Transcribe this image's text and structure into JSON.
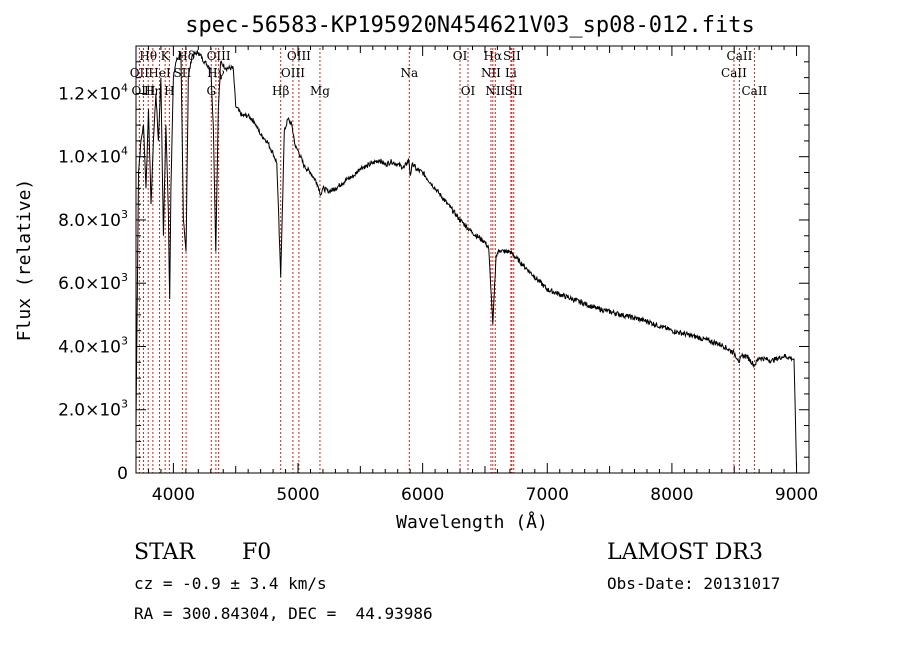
{
  "chart_data": {
    "type": "line",
    "title": "spec-56583-KP195920N454621V03_sp08-012.fits",
    "xlabel": "Wavelength (Å)",
    "ylabel": "Flux (relative)",
    "xlim": [
      3700,
      9100
    ],
    "ylim": [
      0,
      13500
    ],
    "x_ticks": [
      {
        "value": 4000,
        "label": "4000"
      },
      {
        "value": 5000,
        "label": "5000"
      },
      {
        "value": 6000,
        "label": "6000"
      },
      {
        "value": 7000,
        "label": "7000"
      },
      {
        "value": 8000,
        "label": "8000"
      },
      {
        "value": 9000,
        "label": "9000"
      }
    ],
    "y_ticks": [
      {
        "value": 0,
        "mant": "0",
        "exp": ""
      },
      {
        "value": 2000,
        "mant": "2.0×10",
        "exp": "3"
      },
      {
        "value": 4000,
        "mant": "4.0×10",
        "exp": "3"
      },
      {
        "value": 6000,
        "mant": "6.0×10",
        "exp": "3"
      },
      {
        "value": 8000,
        "mant": "8.0×10",
        "exp": "3"
      },
      {
        "value": 10000,
        "mant": "1.0×10",
        "exp": "4"
      },
      {
        "value": 12000,
        "mant": "1.2×10",
        "exp": "4"
      }
    ],
    "spectrum": {
      "x": [
        3700,
        3720,
        3740,
        3760,
        3780,
        3800,
        3820,
        3840,
        3860,
        3880,
        3900,
        3920,
        3940,
        3960,
        3970,
        3980,
        4000,
        4020,
        4060,
        4080,
        4101,
        4120,
        4150,
        4200,
        4250,
        4300,
        4320,
        4340,
        4360,
        4380,
        4420,
        4480,
        4500,
        4550,
        4600,
        4650,
        4700,
        4750,
        4800,
        4830,
        4861,
        4890,
        4920,
        4950,
        4980,
        5000,
        5050,
        5100,
        5150,
        5183,
        5200,
        5250,
        5300,
        5350,
        5400,
        5450,
        5500,
        5550,
        5600,
        5650,
        5700,
        5750,
        5800,
        5850,
        5890,
        5900,
        5920,
        5950,
        6000,
        6100,
        6200,
        6300,
        6400,
        6500,
        6530,
        6563,
        6590,
        6620,
        6650,
        6700,
        6800,
        6900,
        7000,
        7200,
        7400,
        7600,
        7800,
        8000,
        8200,
        8400,
        8498,
        8530,
        8542,
        8560,
        8600,
        8662,
        8700,
        8800,
        8900,
        8980,
        9000
      ],
      "y": [
        1500,
        9500,
        10500,
        11000,
        9000,
        11500,
        8500,
        10500,
        12000,
        10500,
        12500,
        7500,
        11000,
        8200,
        5500,
        9000,
        12500,
        13000,
        13300,
        8000,
        7000,
        12500,
        13200,
        13300,
        13000,
        12800,
        11000,
        7000,
        11500,
        13000,
        12800,
        12800,
        11600,
        11300,
        11300,
        11100,
        10700,
        10500,
        10100,
        9800,
        6200,
        10800,
        11200,
        11000,
        10300,
        10200,
        9700,
        9500,
        9200,
        8800,
        9000,
        8900,
        9000,
        9150,
        9300,
        9400,
        9650,
        9700,
        9800,
        9900,
        9750,
        9850,
        9750,
        9650,
        9900,
        9400,
        9800,
        9600,
        9500,
        9000,
        8500,
        8000,
        7600,
        7300,
        7100,
        4700,
        6900,
        7050,
        7000,
        7000,
        6600,
        6200,
        5800,
        5500,
        5200,
        5000,
        4800,
        4500,
        4300,
        4050,
        3800,
        3600,
        3500,
        3700,
        3700,
        3400,
        3650,
        3550,
        3700,
        3600,
        200
      ]
    },
    "lines": [
      {
        "name": "Hθ",
        "x": 3798,
        "row": 0
      },
      {
        "name": "K",
        "x": 3934,
        "row": 0
      },
      {
        "name": "Hδ",
        "x": 4102,
        "row": 0
      },
      {
        "name": "OIII",
        "x": 4363,
        "row": 0
      },
      {
        "name": "OIII",
        "x": 5007,
        "row": 0
      },
      {
        "name": "OI",
        "x": 6300,
        "row": 0
      },
      {
        "name": "Hα",
        "x": 6563,
        "row": 0
      },
      {
        "name": "SII",
        "x": 6716,
        "row": 0
      },
      {
        "name": "CaII",
        "x": 8542,
        "row": 0
      },
      {
        "name": "OII",
        "x": 3727,
        "row": 1
      },
      {
        "name": "HeI",
        "x": 3889,
        "row": 1
      },
      {
        "name": "SII",
        "x": 4072,
        "row": 1
      },
      {
        "name": "Hγ",
        "x": 4341,
        "row": 1
      },
      {
        "name": "OIII",
        "x": 4959,
        "row": 1
      },
      {
        "name": "Na",
        "x": 5893,
        "row": 1
      },
      {
        "name": "NII",
        "x": 6548,
        "row": 1
      },
      {
        "name": "Li",
        "x": 6708,
        "row": 1
      },
      {
        "name": "CaII",
        "x": 8498,
        "row": 1
      },
      {
        "name": "OIII",
        "x": 3760,
        "row": 2
      },
      {
        "name": "Hη",
        "x": 3835,
        "row": 2
      },
      {
        "name": "H",
        "x": 3968,
        "row": 2
      },
      {
        "name": "G",
        "x": 4304,
        "row": 2
      },
      {
        "name": "Hβ",
        "x": 4861,
        "row": 2
      },
      {
        "name": "Mg",
        "x": 5176,
        "row": 2
      },
      {
        "name": "OI",
        "x": 6364,
        "row": 2
      },
      {
        "name": "NII",
        "x": 6583,
        "row": 2
      },
      {
        "name": "SII",
        "x": 6731,
        "row": 2
      },
      {
        "name": "CaII",
        "x": 8662,
        "row": 2
      }
    ]
  },
  "info": {
    "object_type": "STAR",
    "subclass": "F0",
    "survey": "LAMOST DR3",
    "redshift": "cz = -0.9 ± 3.4 km/s",
    "obs_date": "Obs-Date: 20131017",
    "coords": "RA = 300.84304, DEC =  44.93986"
  }
}
